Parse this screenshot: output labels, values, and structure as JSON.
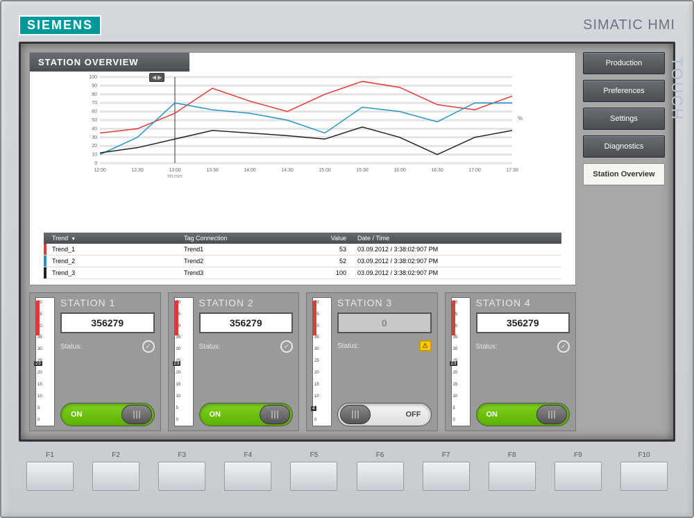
{
  "brand": {
    "logo_text": "SIEMENS",
    "product": "SIMATIC HMI",
    "touch_label": "TOUCH"
  },
  "side_nav": {
    "items": [
      {
        "label": "Production",
        "active": false
      },
      {
        "label": "Preferences",
        "active": false
      },
      {
        "label": "Settings",
        "active": false
      },
      {
        "label": "Diagnostics",
        "active": false
      },
      {
        "label": "Station Overview",
        "active": true
      }
    ]
  },
  "overview": {
    "title": "STATION OVERVIEW",
    "chart": {
      "type": "line",
      "ylim": [
        0,
        100
      ],
      "ytick_step": 10,
      "y_unit_label": "%",
      "x_labels": [
        "12:00",
        "12:30",
        "13:00",
        "13:30",
        "14:00",
        "14:30",
        "15:00",
        "15:30",
        "16:00",
        "16:30",
        "17:00",
        "17:30"
      ],
      "x_axis_label": "hh:mm",
      "grid_color": "#e4e4e4",
      "background_color": "#ffffff",
      "ruler_x_index": 2,
      "series": [
        {
          "name": "Trend_1",
          "color": "#e53935",
          "values": [
            35,
            40,
            58,
            87,
            72,
            60,
            80,
            95,
            88,
            68,
            62,
            78
          ]
        },
        {
          "name": "Trend_2",
          "color": "#2196c4",
          "values": [
            10,
            30,
            70,
            62,
            58,
            50,
            35,
            65,
            60,
            48,
            70,
            70
          ]
        },
        {
          "name": "Trend_3",
          "color": "#222222",
          "values": [
            12,
            18,
            28,
            38,
            35,
            32,
            28,
            42,
            30,
            10,
            30,
            38
          ]
        }
      ]
    },
    "trend_table": {
      "columns": [
        "Trend",
        "Tag Connection",
        "Value",
        "Date / Time"
      ],
      "rows": [
        {
          "marker_color": "#e53935",
          "trend": "Trend_1",
          "tag": "Trend1",
          "value": "53",
          "dt": "03.09.2012 / 3:38:02:907 PM"
        },
        {
          "marker_color": "#2196c4",
          "trend": "Trend_2",
          "tag": "Trend2",
          "value": "52",
          "dt": "03.09.2012 / 3:38:02:907 PM"
        },
        {
          "marker_color": "#222222",
          "trend": "Trend_3",
          "tag": "Trend3",
          "value": "100",
          "dt": "03.09.2012 / 3:38:02:907 PM"
        }
      ]
    }
  },
  "stations": [
    {
      "name": "STATION 1",
      "counter": "356279",
      "counter_dim": false,
      "status_label": "Status:",
      "status_ok": true,
      "toggle_on": true,
      "on_label": "ON",
      "off_label": "OFF",
      "gauge": {
        "value": 23,
        "min": 0,
        "max": 50,
        "band_color": "#e53935",
        "band_from": 35,
        "band_to": 50
      }
    },
    {
      "name": "STATION 2",
      "counter": "356279",
      "counter_dim": false,
      "status_label": "Status:",
      "status_ok": true,
      "toggle_on": true,
      "on_label": "ON",
      "off_label": "OFF",
      "gauge": {
        "value": 23,
        "min": 0,
        "max": 50,
        "band_color": "#e53935",
        "band_from": 35,
        "band_to": 50
      }
    },
    {
      "name": "STATION 3",
      "counter": "0",
      "counter_dim": true,
      "status_label": "Status:",
      "status_ok": false,
      "toggle_on": false,
      "on_label": "ON",
      "off_label": "OFF",
      "gauge": {
        "value": 4,
        "min": 0,
        "max": 50,
        "band_color": "#e53935",
        "band_from": 35,
        "band_to": 50
      }
    },
    {
      "name": "STATION 4",
      "counter": "356279",
      "counter_dim": false,
      "status_label": "Status:",
      "status_ok": true,
      "toggle_on": true,
      "on_label": "ON",
      "off_label": "OFF",
      "gauge": {
        "value": 23,
        "min": 0,
        "max": 50,
        "band_color": "#e53935",
        "band_from": 35,
        "band_to": 50
      }
    }
  ],
  "function_keys": [
    "F1",
    "F2",
    "F3",
    "F4",
    "F5",
    "F6",
    "F7",
    "F8",
    "F9",
    "F10"
  ],
  "colors": {
    "panel_header_bg": "#565a5e",
    "accent_teal": "#009999",
    "toggle_on": "#6ac300"
  }
}
